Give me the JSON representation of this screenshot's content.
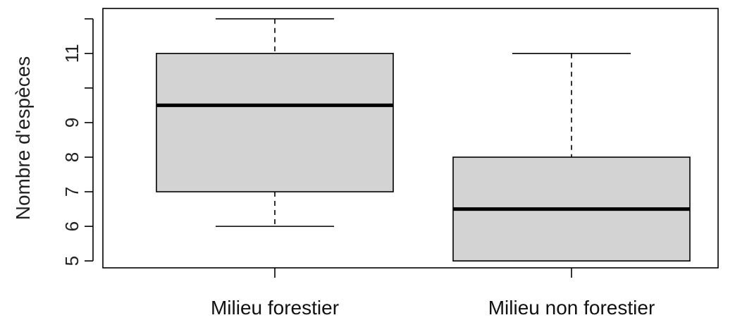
{
  "chart_data": {
    "type": "boxplot",
    "ylabel": "Nombre d'espèces",
    "ylim": [
      4.8,
      12.3
    ],
    "yticks": [
      5,
      6,
      7,
      8,
      9,
      10,
      11,
      12
    ],
    "ytick_labels": [
      "5",
      "6",
      "7",
      "8",
      "9",
      "",
      "11",
      ""
    ],
    "categories": [
      "Milieu forestier",
      "Milieu non forestier"
    ],
    "series": [
      {
        "category": "Milieu forestier",
        "min": 6,
        "q1": 7,
        "median": 9.5,
        "q3": 11,
        "max": 12
      },
      {
        "category": "Milieu non forestier",
        "min": 5,
        "q1": 5,
        "median": 6.5,
        "q3": 8,
        "max": 11
      }
    ],
    "box_fill": "#d3d3d3",
    "grid": false
  }
}
